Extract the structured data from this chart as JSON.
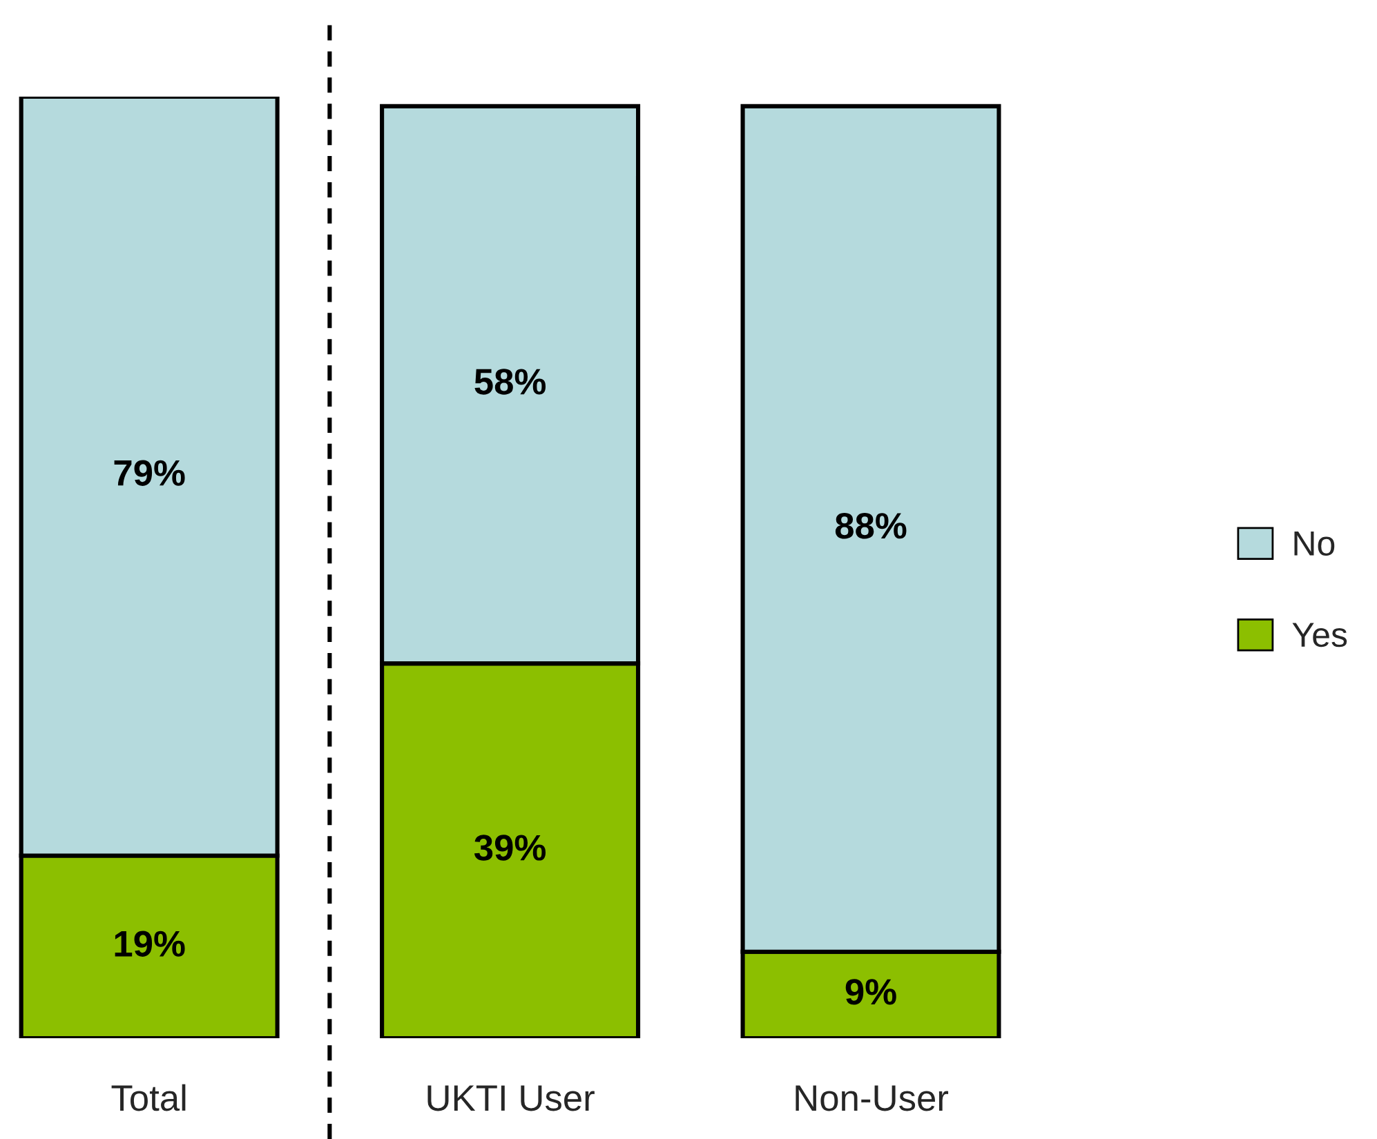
{
  "chart_data": {
    "type": "bar",
    "stacked": true,
    "categories": [
      "Total",
      "UKTI User",
      "Non-User"
    ],
    "series": [
      {
        "name": "Yes",
        "color": "#8cbf00",
        "values": [
          19,
          39,
          9
        ],
        "value_labels": [
          "19%",
          "39%",
          "9%"
        ]
      },
      {
        "name": "No",
        "color": "#b5dadd",
        "values": [
          79,
          58,
          88
        ],
        "value_labels": [
          "79%",
          "58%",
          "88%"
        ]
      }
    ],
    "legend": "right",
    "tick_labels": "x"
  }
}
